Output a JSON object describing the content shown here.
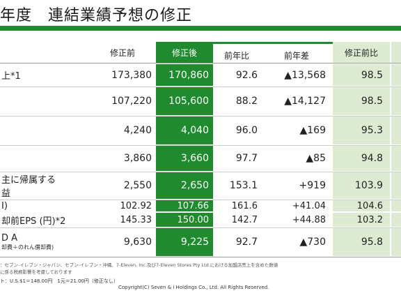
{
  "title": "年度　連結業績予想の修正",
  "headers": {
    "before": "修正前",
    "after": "修正後",
    "yoy_ratio": "前年比",
    "yoy_diff": "前年差",
    "vs_before": "修正前比"
  },
  "rows": [
    {
      "label": "上*1",
      "sub": "",
      "before": "173,380",
      "after": "170,860",
      "yoy_ratio": "92.6",
      "yoy_diff": "▲13,568",
      "vs_before": "98.5"
    },
    {
      "label": "",
      "sub": "",
      "before": "107,220",
      "after": "105,600",
      "yoy_ratio": "88.2",
      "yoy_diff": "▲14,127",
      "vs_before": "98.5"
    },
    {
      "label": "",
      "sub": "",
      "before": "4,240",
      "after": "4,040",
      "yoy_ratio": "96.0",
      "yoy_diff": "▲169",
      "vs_before": "95.3"
    },
    {
      "label": "",
      "sub": "",
      "before": "3,860",
      "after": "3,660",
      "yoy_ratio": "97.7",
      "yoy_diff": "▲85",
      "vs_before": "94.8"
    },
    {
      "label": "主に帰属する",
      "sub": "益",
      "before": "2,550",
      "after": "2,650",
      "yoy_ratio": "153.1",
      "yoy_diff": "+919",
      "vs_before": "103.9"
    },
    {
      "label": "I)",
      "sub": "",
      "before": "102.92",
      "after": "107.66",
      "yoy_ratio": "161.6",
      "yoy_diff": "+41.04",
      "vs_before": "104.6"
    },
    {
      "label": "却前EPS (円)*2",
      "sub": "",
      "before": "145.33",
      "after": "150.00",
      "yoy_ratio": "142.7",
      "yoy_diff": "+44.88",
      "vs_before": "103.2"
    },
    {
      "label": "D A",
      "sub": "却費＋のれん償却費)",
      "before": "9,630",
      "after": "9,225",
      "yoy_ratio": "92.7",
      "yoy_diff": "▲730",
      "vs_before": "95.8"
    }
  ],
  "notes": {
    "line1": "：セブン-イレブン・ジャパン、セブン-イレブン・沖縄、7-Eleven, Inc.及び7-Eleven Stores Pty Ltd.における加盟店売上を含めた数値",
    "line2": "に係る税務影響を考慮しております",
    "line3": "ト：U.S.$1＝148.00円　1元＝21.00円（修正なし）",
    "copyright": "Copyright(C) Seven & i Holdings Co., Ltd. All Rights Reserved."
  }
}
